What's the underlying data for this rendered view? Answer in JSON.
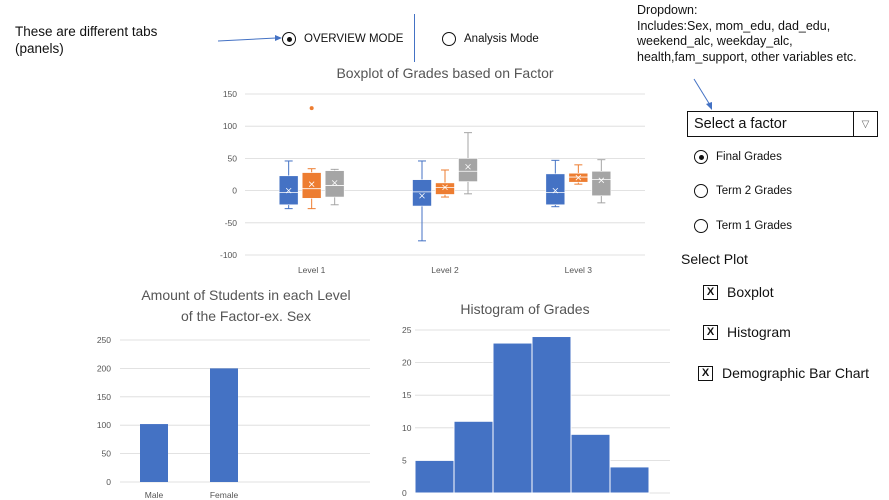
{
  "annotations": {
    "tabs_note": [
      "These are different tabs",
      "(panels)"
    ],
    "dropdown_note": [
      "Dropdown:",
      "Includes:Sex, mom_edu, dad_edu,",
      "weekend_alc, weekday_alc,",
      "health,fam_support, other variables etc."
    ]
  },
  "tabs": [
    {
      "label": "OVERVIEW MODE",
      "selected": true
    },
    {
      "label": "Analysis Mode",
      "selected": false
    }
  ],
  "factor_select": {
    "label": "Select a factor",
    "arrow": "▽"
  },
  "grade_options": [
    {
      "label": "Final Grades",
      "selected": true
    },
    {
      "label": "Term 2 Grades",
      "selected": false
    },
    {
      "label": "Term 1 Grades",
      "selected": false
    }
  ],
  "plot_select": {
    "title": "Select Plot",
    "items": [
      {
        "label": "Boxplot",
        "mark": "X"
      },
      {
        "label": "Histogram",
        "mark": "X"
      },
      {
        "label": "Demographic Bar Chart",
        "mark": "X"
      }
    ]
  },
  "colors": {
    "blue": "#4472C4",
    "orange": "#ED7D31",
    "gray": "#A5A5A5",
    "arrow": "#4472C4"
  },
  "chart_data": [
    {
      "id": "boxplot",
      "type": "boxplot",
      "title": "Boxplot of Grades based on Factor",
      "categories": [
        "Level 1",
        "Level 2",
        "Level 3"
      ],
      "ylim": [
        -100,
        150
      ],
      "yticks": [
        -100,
        -50,
        0,
        50,
        100,
        150
      ],
      "series_colors": [
        "#4472C4",
        "#ED7D31",
        "#A5A5A5"
      ],
      "boxes": [
        [
          {
            "min": -28,
            "q1": -22,
            "median": -3,
            "q3": 23,
            "max": 46,
            "mean": 0
          },
          {
            "min": -28,
            "q1": -12,
            "median": 3,
            "q3": 28,
            "max": 34,
            "mean": 10,
            "outliers": [
              128
            ]
          },
          {
            "min": -22,
            "q1": -10,
            "median": 8,
            "q3": 31,
            "max": 33,
            "mean": 12
          }
        ],
        [
          {
            "min": -78,
            "q1": -24,
            "median": -2,
            "q3": 17,
            "max": 46,
            "mean": -8
          },
          {
            "min": -10,
            "q1": -6,
            "median": 5,
            "q3": 12,
            "max": 32,
            "mean": 5
          },
          {
            "min": -5,
            "q1": 14,
            "median": 30,
            "q3": 50,
            "max": 90,
            "mean": 37
          }
        ],
        [
          {
            "min": -25,
            "q1": -22,
            "median": -3,
            "q3": 26,
            "max": 47,
            "mean": 0
          },
          {
            "min": 10,
            "q1": 13,
            "median": 21,
            "q3": 27,
            "max": 40,
            "mean": 20
          },
          {
            "min": -19,
            "q1": -8,
            "median": 17,
            "q3": 30,
            "max": 48,
            "mean": 16
          }
        ]
      ]
    },
    {
      "id": "demographic",
      "type": "bar",
      "title": [
        "Amount of Students in each Level",
        "of the Factor-ex. Sex"
      ],
      "categories": [
        "Male",
        "Female"
      ],
      "values": [
        102,
        200
      ],
      "ylim": [
        0,
        250
      ],
      "yticks": [
        0,
        50,
        100,
        150,
        200,
        250
      ]
    },
    {
      "id": "histogram",
      "type": "bar",
      "title": "Histogram of Grades",
      "values": [
        5,
        11,
        23,
        24,
        9,
        4
      ],
      "ylim": [
        0,
        25
      ],
      "yticks": [
        0,
        5,
        10,
        15,
        20,
        25
      ]
    }
  ]
}
